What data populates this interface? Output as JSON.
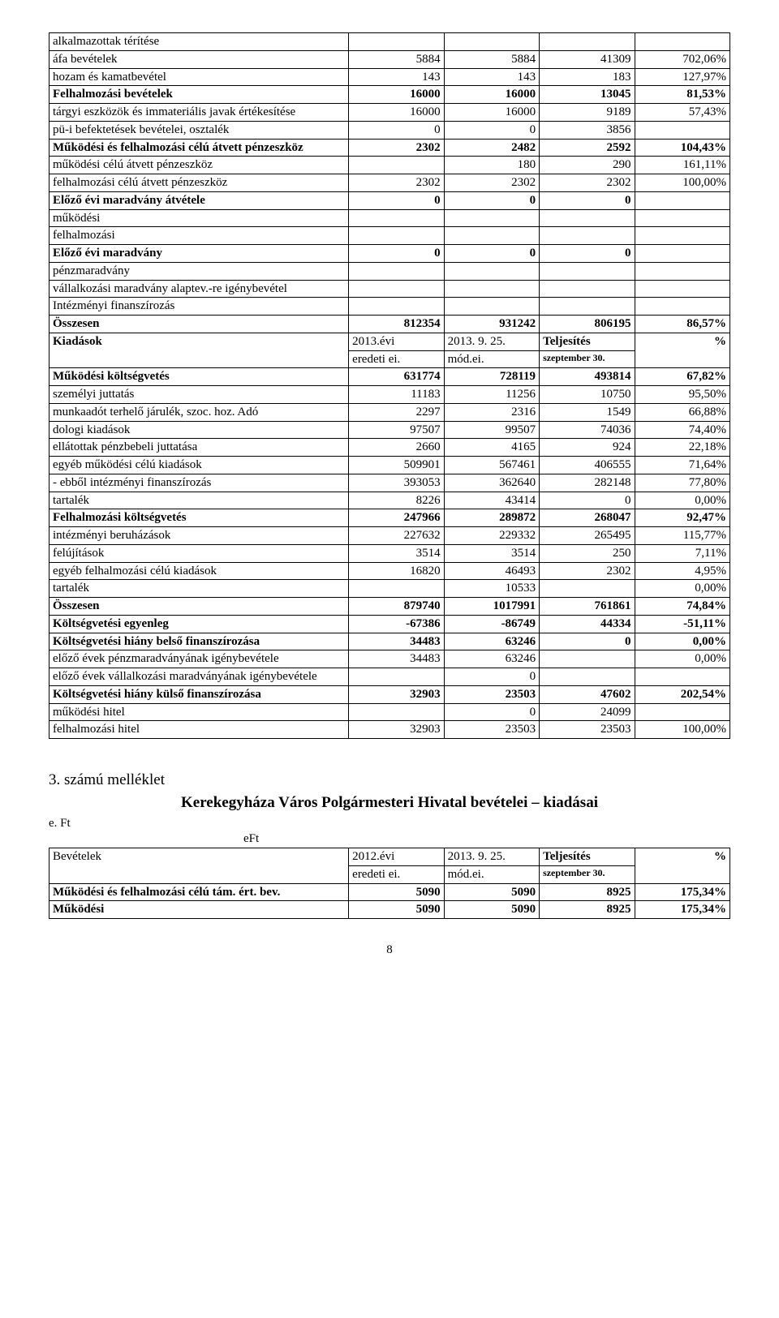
{
  "page_number": "8",
  "table1": {
    "rows": [
      {
        "label": "alkalmazottak térítése",
        "c1": "",
        "c2": "",
        "c3": "",
        "c4": "",
        "bold": false
      },
      {
        "label": "áfa bevételek",
        "c1": "5884",
        "c2": "5884",
        "c3": "41309",
        "c4": "702,06%",
        "bold": false
      },
      {
        "label": "hozam és kamatbevétel",
        "c1": "143",
        "c2": "143",
        "c3": "183",
        "c4": "127,97%",
        "bold": false
      },
      {
        "label": "Felhalmozási bevételek",
        "c1": "16000",
        "c2": "16000",
        "c3": "13045",
        "c4": "81,53%",
        "bold": true
      },
      {
        "label": "tárgyi eszközök és immateriális javak értékesítése",
        "c1": "16000",
        "c2": "16000",
        "c3": "9189",
        "c4": "57,43%",
        "bold": false
      },
      {
        "label": "pü-i befektetések bevételei, osztalék",
        "c1": "0",
        "c2": "0",
        "c3": "3856",
        "c4": "",
        "bold": false
      },
      {
        "label": "Működési és felhalmozási célú átvett pénzeszköz",
        "c1": "2302",
        "c2": "2482",
        "c3": "2592",
        "c4": "104,43%",
        "bold": true
      },
      {
        "label": "működési célú átvett pénzeszköz",
        "c1": "",
        "c2": "180",
        "c3": "290",
        "c4": "161,11%",
        "bold": false
      },
      {
        "label": "felhalmozási célú átvett pénzeszköz",
        "c1": "2302",
        "c2": "2302",
        "c3": "2302",
        "c4": "100,00%",
        "bold": false
      },
      {
        "label": "Előző évi maradvány átvétele",
        "c1": "0",
        "c2": "0",
        "c3": "0",
        "c4": "",
        "bold": true
      },
      {
        "label": "működési",
        "c1": "",
        "c2": "",
        "c3": "",
        "c4": "",
        "bold": false
      },
      {
        "label": "felhalmozási",
        "c1": "",
        "c2": "",
        "c3": "",
        "c4": "",
        "bold": false
      },
      {
        "label": "Előző évi maradvány",
        "c1": "0",
        "c2": "0",
        "c3": "0",
        "c4": "",
        "bold": true
      },
      {
        "label": "pénzmaradvány",
        "c1": "",
        "c2": "",
        "c3": "",
        "c4": "",
        "bold": false
      },
      {
        "label": "vállalkozási maradvány alaptev.-re igénybevétel",
        "c1": "",
        "c2": "",
        "c3": "",
        "c4": "",
        "bold": false
      },
      {
        "label": "Intézményi finanszírozás",
        "c1": "",
        "c2": "",
        "c3": "",
        "c4": "",
        "bold": false
      },
      {
        "label": "Összesen",
        "c1": "812354",
        "c2": "931242",
        "c3": "806195",
        "c4": "86,57%",
        "bold": true
      }
    ],
    "header2": {
      "label": "Kiadások",
      "h1a": "2013.évi",
      "h1b": "eredeti ei.",
      "h2a": "2013. 9. 25.",
      "h2b": "mód.ei.",
      "h3a": "Teljesítés",
      "h3b": "szeptember 30.",
      "h4": "%"
    },
    "rows2": [
      {
        "label": "Működési költségvetés",
        "c1": "631774",
        "c2": "728119",
        "c3": "493814",
        "c4": "67,82%",
        "bold": true
      },
      {
        "label": "személyi juttatás",
        "c1": "11183",
        "c2": "11256",
        "c3": "10750",
        "c4": "95,50%",
        "bold": false
      },
      {
        "label": "munkaadót terhelő járulék, szoc. hoz. Adó",
        "c1": "2297",
        "c2": "2316",
        "c3": "1549",
        "c4": "66,88%",
        "bold": false
      },
      {
        "label": "dologi kiadások",
        "c1": "97507",
        "c2": "99507",
        "c3": "74036",
        "c4": "74,40%",
        "bold": false
      },
      {
        "label": "ellátottak pénzbebeli juttatása",
        "c1": "2660",
        "c2": "4165",
        "c3": "924",
        "c4": "22,18%",
        "bold": false
      },
      {
        "label": "egyéb működési célú kiadások",
        "c1": "509901",
        "c2": "567461",
        "c3": "406555",
        "c4": "71,64%",
        "bold": false
      },
      {
        "label": " - ebből intézményi finanszírozás",
        "c1": "393053",
        "c2": "362640",
        "c3": "282148",
        "c4": "77,80%",
        "bold": false
      },
      {
        "label": "tartalék",
        "c1": "8226",
        "c2": "43414",
        "c3": "0",
        "c4": "0,00%",
        "bold": false
      },
      {
        "label": "Felhalmozási költségvetés",
        "c1": "247966",
        "c2": "289872",
        "c3": "268047",
        "c4": "92,47%",
        "bold": true
      },
      {
        "label": "intézményi beruházások",
        "c1": "227632",
        "c2": "229332",
        "c3": "265495",
        "c4": "115,77%",
        "bold": false
      },
      {
        "label": "felújítások",
        "c1": "3514",
        "c2": "3514",
        "c3": "250",
        "c4": "7,11%",
        "bold": false
      },
      {
        "label": "egyéb felhalmozási célú kiadások",
        "c1": "16820",
        "c2": "46493",
        "c3": "2302",
        "c4": "4,95%",
        "bold": false
      },
      {
        "label": "tartalék",
        "c1": "",
        "c2": "10533",
        "c3": "",
        "c4": "0,00%",
        "bold": false
      },
      {
        "label": "Összesen",
        "c1": "879740",
        "c2": "1017991",
        "c3": "761861",
        "c4": "74,84%",
        "bold": true
      },
      {
        "label": "Költségvetési egyenleg",
        "c1": "-67386",
        "c2": "-86749",
        "c3": "44334",
        "c4": "-51,11%",
        "bold": true
      },
      {
        "label": "Költségvetési hiány belső finanszírozása",
        "c1": "34483",
        "c2": "63246",
        "c3": "0",
        "c4": "0,00%",
        "bold": true
      },
      {
        "label": "előző évek pénzmaradványának igénybevétele",
        "c1": "34483",
        "c2": "63246",
        "c3": "",
        "c4": "0,00%",
        "bold": false
      },
      {
        "label": "előző évek vállalkozási maradványának igénybevétele",
        "c1": "",
        "c2": "0",
        "c3": "",
        "c4": "",
        "bold": false
      },
      {
        "label": "Költségvetési hiány külső finanszírozása",
        "c1": "32903",
        "c2": "23503",
        "c3": "47602",
        "c4": "202,54%",
        "bold": true
      },
      {
        "label": "működési  hitel",
        "c1": "",
        "c2": "0",
        "c3": "24099",
        "c4": "",
        "bold": false
      },
      {
        "label": "felhalmozási hitel",
        "c1": "32903",
        "c2": "23503",
        "c3": "23503",
        "c4": "100,00%",
        "bold": false
      }
    ]
  },
  "section2": {
    "attachment_label": "3. számú melléklet",
    "title": "Kerekegyháza Város Polgármesteri Hivatal bevételei – kiadásai",
    "eft_left": "e. Ft",
    "eft_right": "eFt",
    "header": {
      "label": "Bevételek",
      "h1a": "2012.évi",
      "h1b": "eredeti ei.",
      "h2a": "2013. 9. 25.",
      "h2b": "mód.ei.",
      "h3a": "Teljesítés",
      "h3b": "szeptember 30.",
      "h4": "%"
    },
    "rows": [
      {
        "label": "Működési és felhalmozási célú tám. ért. bev.",
        "c1": "5090",
        "c2": "5090",
        "c3": "8925",
        "c4": "175,34%",
        "bold": true
      },
      {
        "label": "Működési",
        "c1": "5090",
        "c2": "5090",
        "c3": "8925",
        "c4": "175,34%",
        "bold": true
      }
    ]
  }
}
